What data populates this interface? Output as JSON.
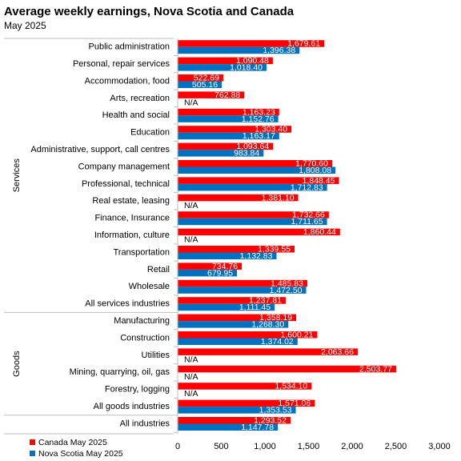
{
  "chart_data": {
    "type": "bar",
    "orientation": "horizontal",
    "title": "Average weekly earnings, Nova Scotia and Canada",
    "subtitle": "May 2025",
    "groups": [
      {
        "label": "Services",
        "categories": [
          "Public administration",
          "Personal, repair services",
          "Accommodation, food",
          "Arts, recreation",
          "Health and social",
          "Education",
          "Administrative, support, call centres",
          "Company management",
          "Professional, technical",
          "Real estate, leasing",
          "Finance, Insurance",
          "Information, culture",
          "Transportation",
          "Retail",
          "Wholesale",
          "All services industries"
        ]
      },
      {
        "label": "Goods",
        "categories": [
          "Manufacturing",
          "Construction",
          "Utilities",
          "Mining, quarrying, oil, gas",
          "Forestry, logging",
          "All goods industries"
        ]
      },
      {
        "label": "",
        "categories": [
          "All industries"
        ]
      }
    ],
    "categories": [
      "Public administration",
      "Personal, repair services",
      "Accommodation, food",
      "Arts, recreation",
      "Health and social",
      "Education",
      "Administrative, support, call centres",
      "Company management",
      "Professional, technical",
      "Real estate, leasing",
      "Finance, Insurance",
      "Information, culture",
      "Transportation",
      "Retail",
      "Wholesale",
      "All services industries",
      "Manufacturing",
      "Construction",
      "Utilities",
      "Mining, quarrying, oil, gas",
      "Forestry, logging",
      "All goods industries",
      "All industries"
    ],
    "series": [
      {
        "name": "Canada May 2025",
        "color": "#ff0000",
        "values": [
          1679.61,
          1090.48,
          522.69,
          762.88,
          1163.23,
          1303.4,
          1093.64,
          1770.6,
          1848.45,
          1381.1,
          1732.66,
          1860.44,
          1339.55,
          734.76,
          1485.83,
          1237.81,
          1358.19,
          1600.21,
          2063.66,
          2503.77,
          1534.1,
          1571.06,
          1293.52
        ],
        "labels": [
          "1,679.61",
          "1,090.48",
          "522.69",
          "762.88",
          "1,163.23",
          "1,303.40",
          "1,093.64",
          "1,770.60",
          "1,848.45",
          "1,381.10",
          "1,732.66",
          "1,860.44",
          "1,339.55",
          "734.76",
          "1,485.83",
          "1,237.81",
          "1,358.19",
          "1,600.21",
          "2,063.66",
          "2,503.77",
          "1,534.10",
          "1,571.06",
          "1,293.52"
        ]
      },
      {
        "name": "Nova Scotia May 2025",
        "color": "#0070c0",
        "values": [
          1396.38,
          1018.4,
          505.16,
          null,
          1152.76,
          1163.17,
          983.84,
          1808.08,
          1712.83,
          null,
          1711.65,
          null,
          1132.83,
          679.95,
          1472.5,
          1111.45,
          1268.3,
          1374.02,
          null,
          null,
          null,
          1353.53,
          1147.78
        ],
        "labels": [
          "1,396.38",
          "1,018.40",
          "505.16",
          "N/A",
          "1,152.76",
          "1,163.17",
          "983.84",
          "1,808.08",
          "1,712.83",
          "N/A",
          "1,711.65",
          "N/A",
          "1,132.83",
          "679.95",
          "1,472.50",
          "1,111.45",
          "1,268.30",
          "1,374.02",
          "N/A",
          "N/A",
          "N/A",
          "1,353.53",
          "1,147.78"
        ]
      }
    ],
    "xlim": [
      0,
      3000
    ],
    "xticks": [
      0,
      500,
      1000,
      1500,
      2000,
      2500,
      3000
    ],
    "xtick_labels": [
      "0",
      "500",
      "1,000",
      "1,500",
      "2,000",
      "2,500",
      "3,000"
    ],
    "grid": false,
    "legend_position": "bottom-left"
  }
}
